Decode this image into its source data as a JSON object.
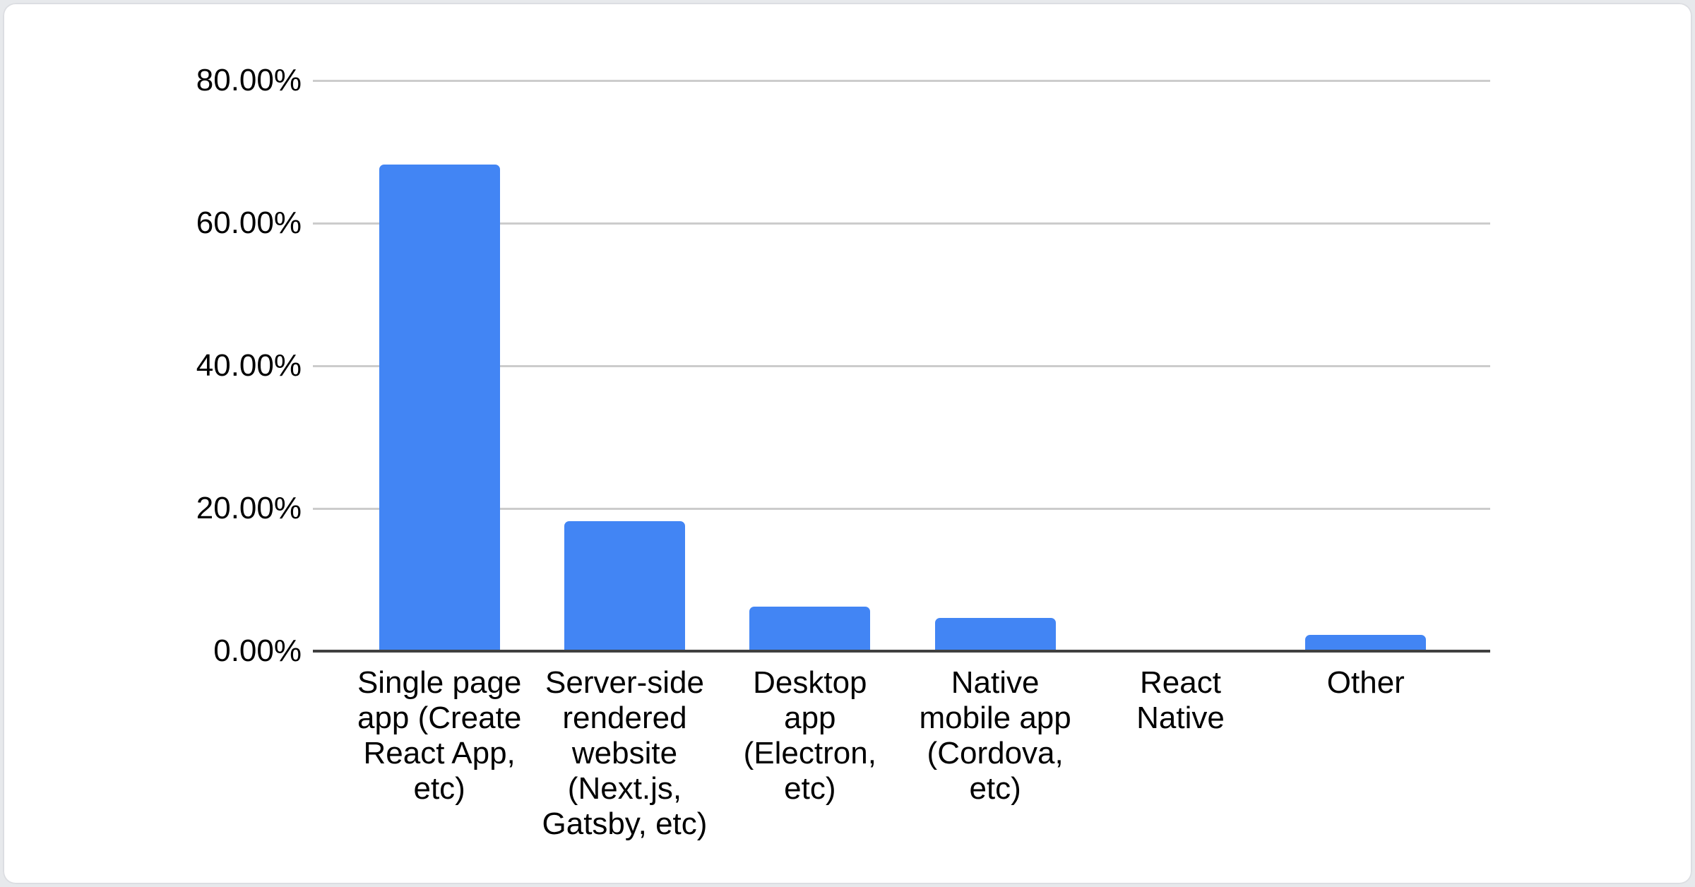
{
  "page": {
    "background_color": "#e7e9ec",
    "card": {
      "background": "#ffffff",
      "border_color": "#dcdee2"
    }
  },
  "chart_data": {
    "type": "bar",
    "title": "",
    "categories": [
      "Single page app (Create React App, etc)",
      "Server-side rendered website (Next.js, Gatsby, etc)",
      "Desktop app (Electron, etc)",
      "Native mobile app (Cordova, etc)",
      "React Native",
      "Other"
    ],
    "values": [
      68.2,
      18.2,
      6.2,
      4.7,
      0,
      2.3
    ],
    "value_format": "percent",
    "ylim": [
      0,
      80
    ],
    "ytick_labels": [
      "80.00%",
      "60.00%",
      "40.00%",
      "20.00%",
      "0.00%"
    ],
    "ytick_values": [
      80,
      60,
      40,
      20,
      0
    ],
    "xlabel": "",
    "ylabel": "",
    "grid": true,
    "legend": "none",
    "bar_color": "#4285f4",
    "gridline_color": "#cccccc",
    "axis_line_color": "#404040",
    "text_color": "#000000"
  }
}
